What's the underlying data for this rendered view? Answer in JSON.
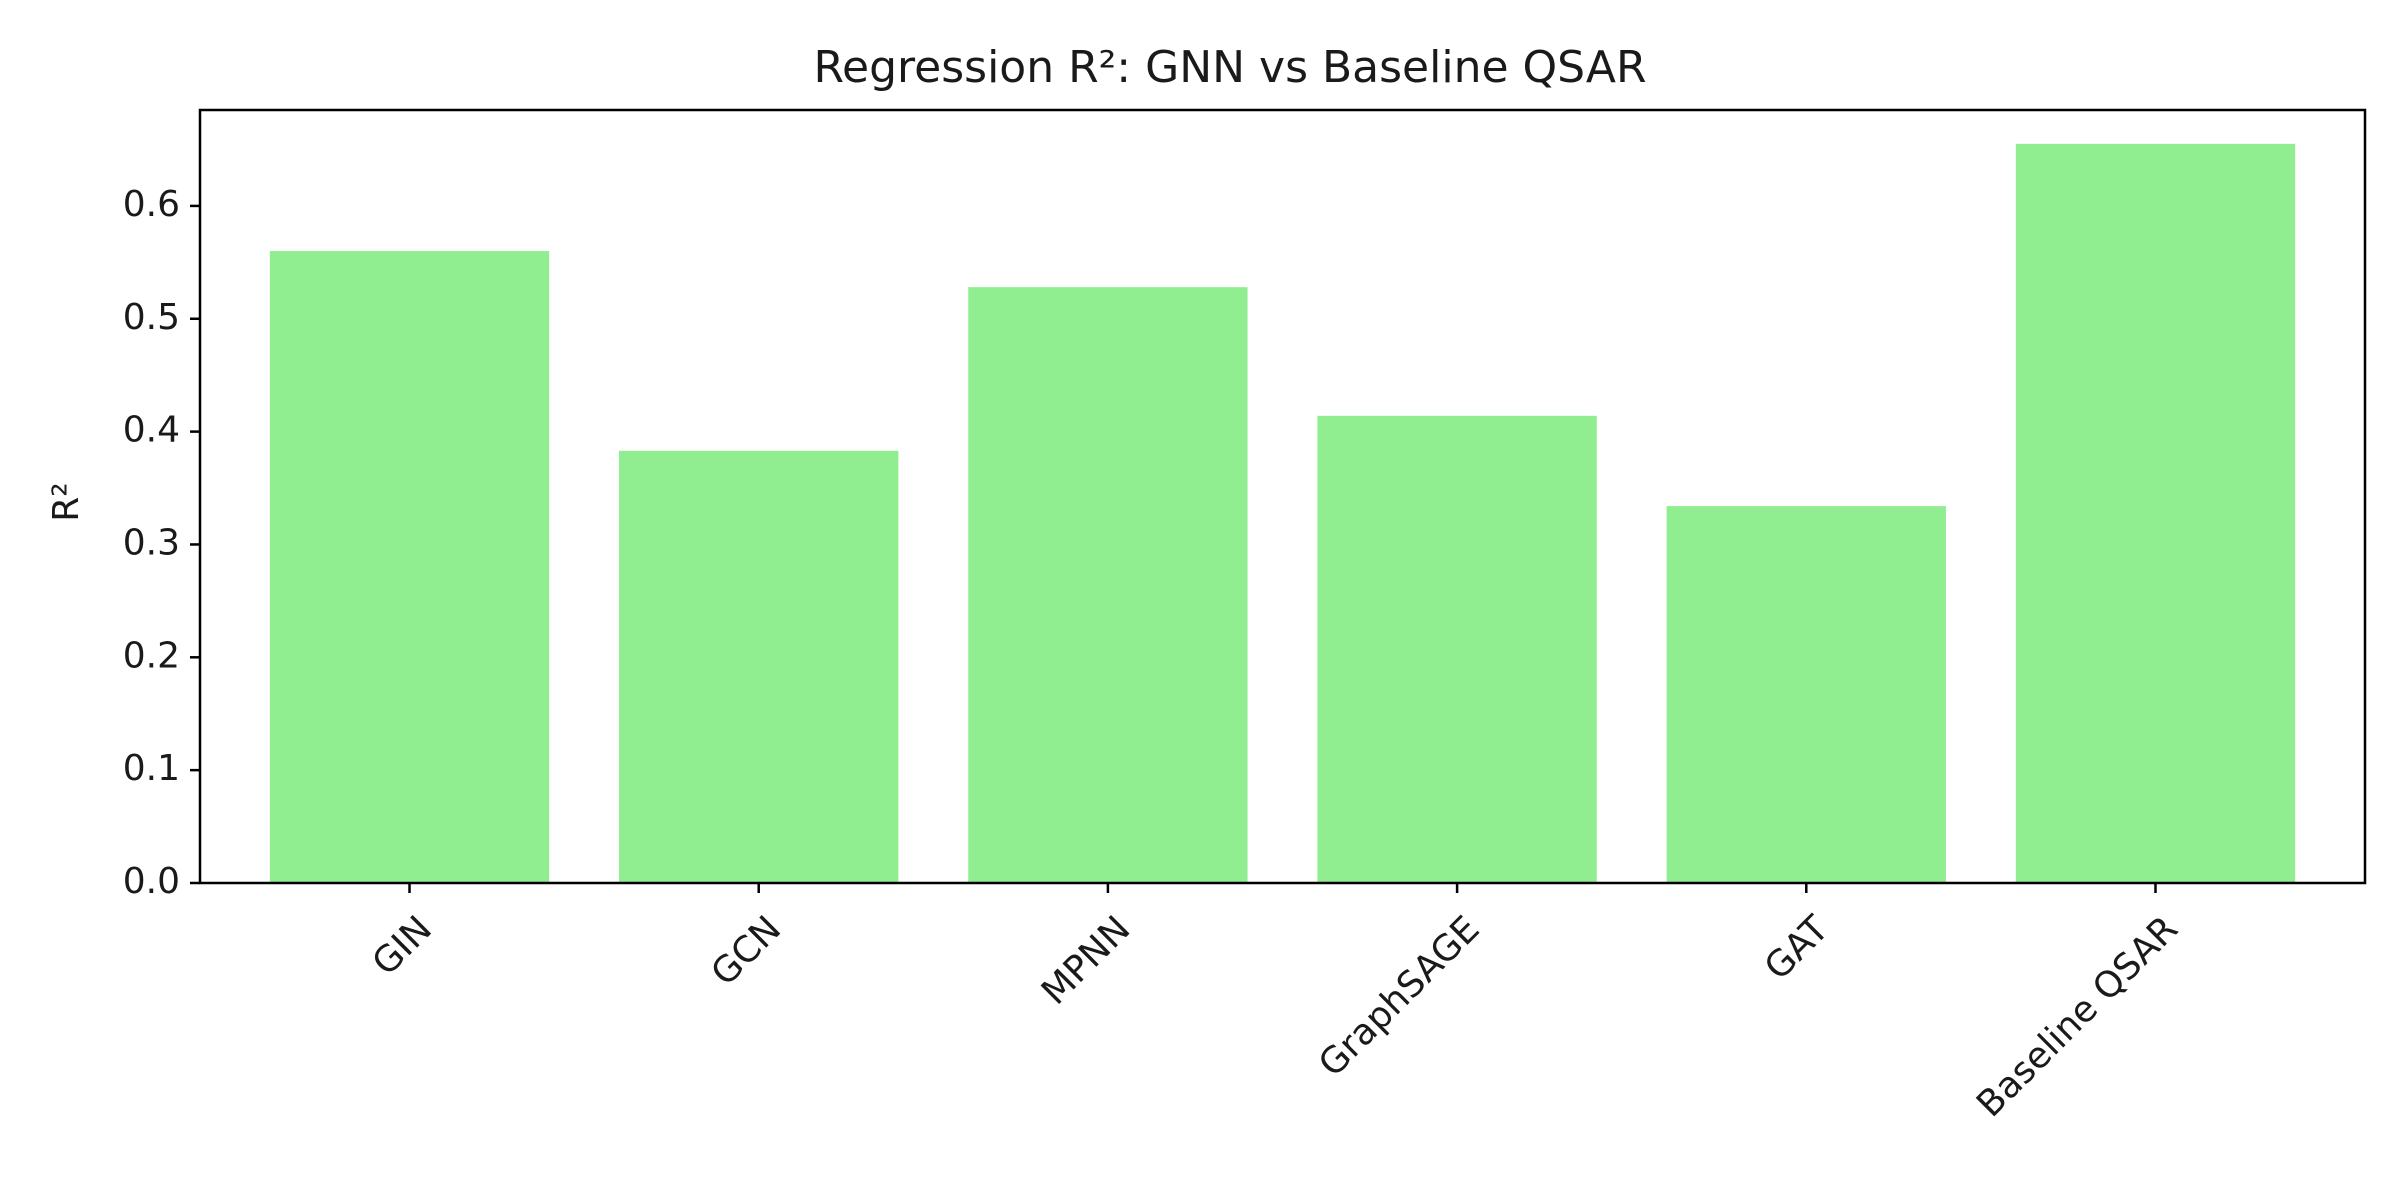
{
  "chart_data": {
    "type": "bar",
    "title": "Regression R²: GNN vs Baseline QSAR",
    "xlabel": "",
    "ylabel": "R²",
    "categories": [
      "GIN",
      "GCN",
      "MPNN",
      "GraphSAGE",
      "GAT",
      "Baseline QSAR"
    ],
    "values": [
      0.56,
      0.383,
      0.528,
      0.414,
      0.334,
      0.655
    ],
    "ylim": [
      0,
      0.685
    ],
    "yticks": [
      0.0,
      0.1,
      0.2,
      0.3,
      0.4,
      0.5,
      0.6
    ],
    "bar_color": "#90EE90",
    "grid": false,
    "legend": "none"
  }
}
